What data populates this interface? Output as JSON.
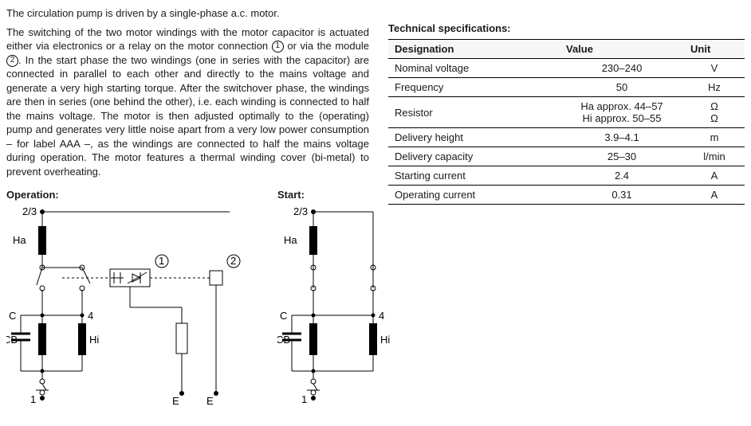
{
  "text": {
    "para1": "The circulation pump is driven by a single-phase a.c. motor.",
    "para2a": "The switching of the two motor windings with the motor capacitor is actuated either via electronics or a relay on the motor connection ",
    "para2b": " or via the module ",
    "para2c": ". In the start phase the two windings (one in series with the capacitor) are connected in parallel to each other and directly to the mains voltage and generate a very high starting torque. After the switchover phase, the windings are then in series (one behind the other), i.e. each winding is connected to half the mains voltage. The motor is then adjusted optimally to the (operating) pump and generates very little noise apart from a very low power consumption – for label AAA –, as the windings are connected to half the mains voltage during operation. The motor features a thermal winding cover (bi-metal) to prevent overheating.",
    "circ1": "1",
    "circ2": "2",
    "operation": "Operation:",
    "start": "Start:",
    "specs_title": "Technical specifications:"
  },
  "diagram": {
    "operation": {
      "top": "2/3",
      "Ha": "Ha",
      "C": "C",
      "four": "4",
      "CB": "CB",
      "Hi": "Hi",
      "one": "1",
      "E1": "E",
      "E2": "E",
      "n1": "1",
      "n2": "2"
    },
    "start": {
      "top": "2/3",
      "Ha": "Ha",
      "C": "C",
      "four": "4",
      "CB": "CB",
      "Hi": "Hi",
      "one": "1"
    }
  },
  "table": {
    "headers": {
      "designation": "Designation",
      "value": "Value",
      "unit": "Unit"
    },
    "rows": [
      {
        "d": "Nominal voltage",
        "v": "230–240",
        "u": "V"
      },
      {
        "d": "Frequency",
        "v": "50",
        "u": "Hz"
      },
      {
        "d": "Resistor",
        "v": "Ha approx. 44–57\nHi approx. 50–55",
        "u": "Ω\nΩ"
      },
      {
        "d": "Delivery height",
        "v": "3.9–4.1",
        "u": "m"
      },
      {
        "d": "Delivery capacity",
        "v": "25–30",
        "u": "l/min"
      },
      {
        "d": "Starting current",
        "v": "2.4",
        "u": "A"
      },
      {
        "d": "Operating current",
        "v": "0.31",
        "u": "A"
      }
    ]
  }
}
